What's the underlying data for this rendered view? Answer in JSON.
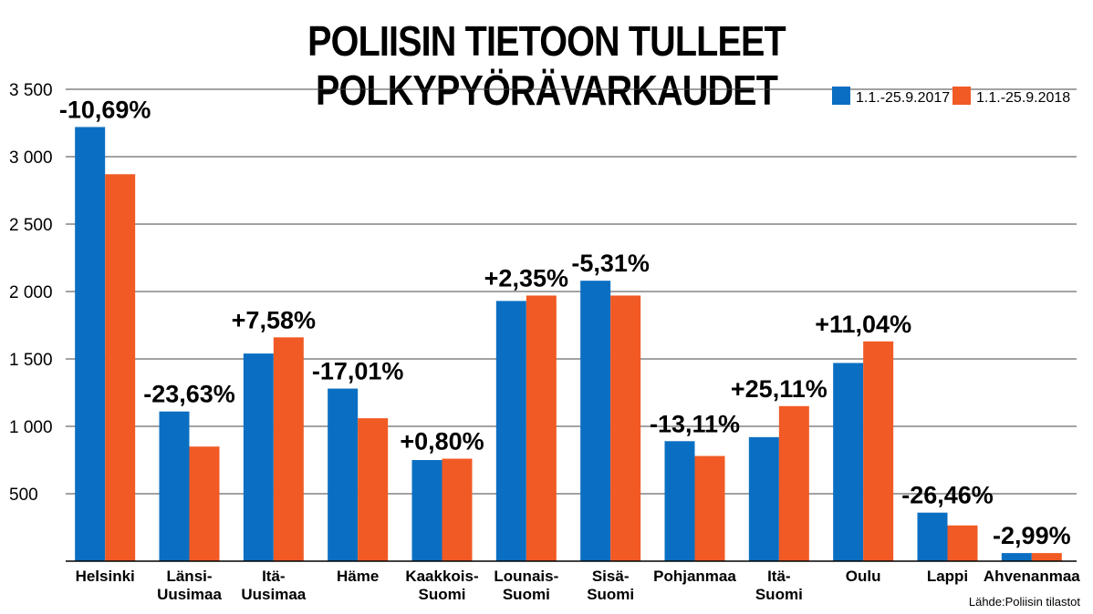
{
  "chart_data": {
    "type": "bar",
    "title": "POLIISIN TIETOON TULLEET POLKYPYÖRÄVARKAUDET",
    "source": "Lähde:Poliisin tilastot",
    "ylim": [
      0,
      3500
    ],
    "yticks": [
      500,
      1000,
      1500,
      2000,
      2500,
      3000,
      3500
    ],
    "ytick_labels": [
      "500",
      "1 000",
      "1 500",
      "2 000",
      "2 500",
      "3 000",
      "3 500"
    ],
    "grid": true,
    "legend_position": "top-right",
    "categories": [
      [
        "Helsinki"
      ],
      [
        "Länsi-",
        "Uusimaa"
      ],
      [
        "Itä-",
        "Uusimaa"
      ],
      [
        "Häme"
      ],
      [
        "Kaakkois-",
        "Suomi"
      ],
      [
        "Lounais-",
        "Suomi"
      ],
      [
        "Sisä-",
        "Suomi"
      ],
      [
        "Pohjanmaa"
      ],
      [
        "Itä-",
        "Suomi"
      ],
      [
        "Oulu"
      ],
      [
        "Lappi"
      ],
      [
        "Ahvenanmaa"
      ]
    ],
    "series": [
      {
        "name": "1.1.-25.9.2017",
        "color": "#0a6fc2",
        "values": [
          3220,
          1110,
          1540,
          1280,
          750,
          1930,
          2080,
          890,
          920,
          1470,
          360,
          60
        ]
      },
      {
        "name": "1.1.-25.9.2018",
        "color": "#f15a24",
        "values": [
          2870,
          850,
          1660,
          1060,
          760,
          1970,
          1970,
          780,
          1150,
          1630,
          265,
          60
        ]
      }
    ],
    "change_labels": [
      "-10,69%",
      "-23,63%",
      "+7,58%",
      "-17,01%",
      "+0,80%",
      "+2,35%",
      "-5,31%",
      "-13,11%",
      "+25,11%",
      "+11,04%",
      "-26,46%",
      "-2,99%"
    ]
  }
}
